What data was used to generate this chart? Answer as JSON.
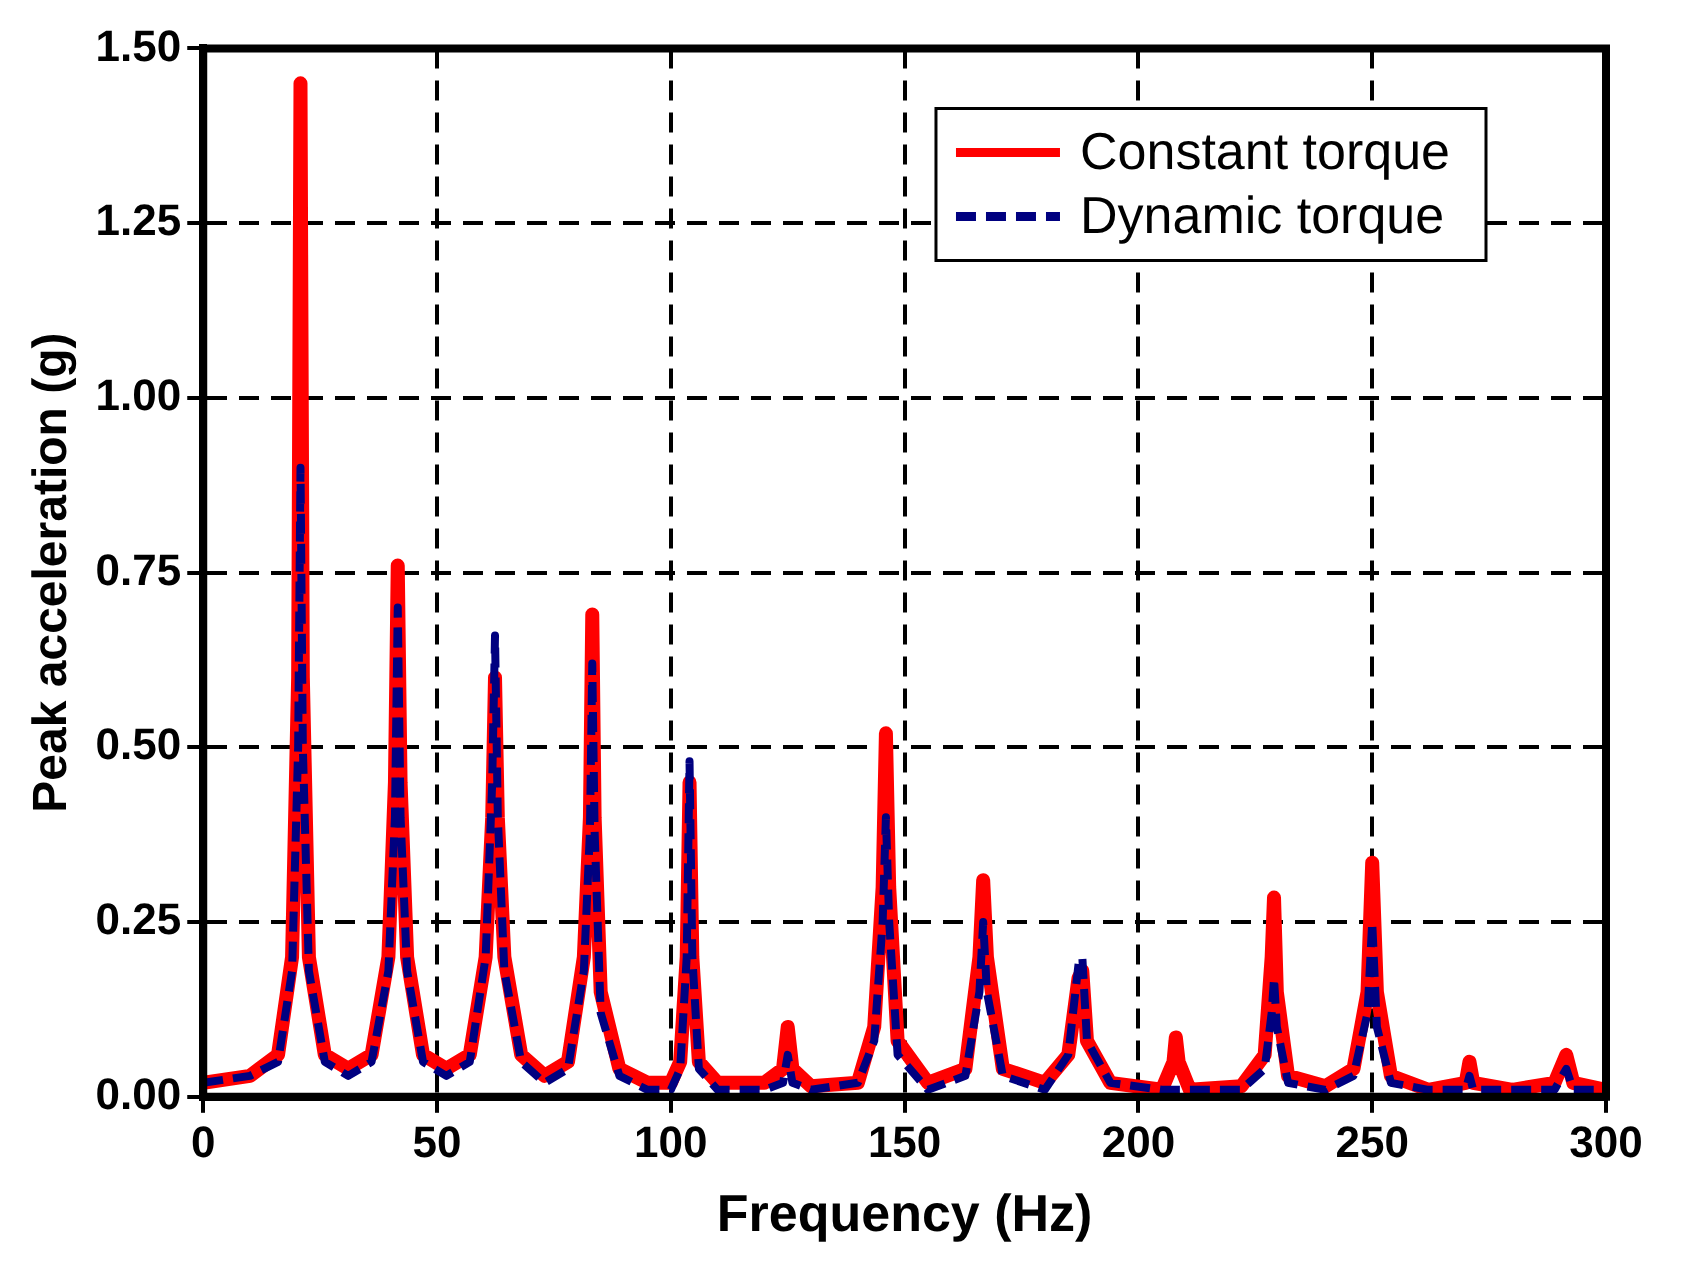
{
  "chart_data": {
    "type": "line",
    "xlabel": "Frequency (Hz)",
    "ylabel": "Peak acceleration (g)",
    "xlim": [
      0,
      300
    ],
    "xticks": [
      0,
      50,
      100,
      150,
      200,
      250,
      300
    ],
    "ylim": [
      0,
      1.5
    ],
    "yticks": [
      {
        "value": 0,
        "label": "0.00"
      },
      {
        "value": 0.25,
        "label": "0.25"
      },
      {
        "value": 0.5,
        "label": "0.50"
      },
      {
        "value": 0.75,
        "label": "0.75"
      },
      {
        "value": 1,
        "label": "1.00"
      },
      {
        "value": 1.25,
        "label": "1.25"
      },
      {
        "value": 1.5,
        "label": "1.50"
      }
    ],
    "grid": true,
    "legend": "top right",
    "marker": "none",
    "series": [
      {
        "name": "Constant torque",
        "color": "#ff0000",
        "line_style": "solid",
        "x": [
          0,
          10,
          16,
          19,
          20.3,
          20.8,
          21.3,
          22.6,
          26,
          31,
          36,
          39.6,
          41,
          41.6,
          42.2,
          43.6,
          47,
          52,
          57,
          60.4,
          61.8,
          62.4,
          63,
          64.4,
          68,
          73,
          78,
          81.4,
          82.7,
          83.2,
          83.7,
          85,
          89,
          95,
          100,
          102,
          103.4,
          104,
          104.6,
          106,
          110,
          120,
          124,
          125,
          126,
          130,
          140,
          143.5,
          145.3,
          146,
          146.7,
          148.5,
          155,
          163,
          166,
          166.8,
          167.6,
          171,
          180,
          185,
          187.2,
          188,
          189,
          194,
          205,
          207.5,
          208,
          208.6,
          211,
          222,
          227,
          228.5,
          229,
          229.6,
          232,
          240,
          246,
          249,
          250,
          251,
          254,
          262,
          270,
          270.8,
          271.6,
          280,
          289,
          291.5,
          293,
          300
        ],
        "values": [
          0.02,
          0.03,
          0.06,
          0.2,
          0.6,
          1.45,
          0.6,
          0.2,
          0.06,
          0.04,
          0.06,
          0.2,
          0.45,
          0.76,
          0.45,
          0.2,
          0.06,
          0.04,
          0.06,
          0.2,
          0.4,
          0.6,
          0.4,
          0.2,
          0.06,
          0.03,
          0.05,
          0.2,
          0.4,
          0.69,
          0.4,
          0.15,
          0.04,
          0.02,
          0.02,
          0.05,
          0.2,
          0.45,
          0.2,
          0.05,
          0.02,
          0.02,
          0.04,
          0.1,
          0.04,
          0.015,
          0.02,
          0.1,
          0.3,
          0.52,
          0.3,
          0.08,
          0.02,
          0.04,
          0.2,
          0.31,
          0.2,
          0.04,
          0.02,
          0.06,
          0.17,
          0.18,
          0.08,
          0.02,
          0.01,
          0.05,
          0.085,
          0.05,
          0.01,
          0.015,
          0.06,
          0.2,
          0.285,
          0.15,
          0.03,
          0.015,
          0.04,
          0.15,
          0.335,
          0.15,
          0.03,
          0.01,
          0.02,
          0.05,
          0.02,
          0.01,
          0.02,
          0.06,
          0.02,
          0.01
        ]
      },
      {
        "name": "Dynamic torque",
        "color": "#000080",
        "line_style": "dashed",
        "x": [
          0,
          10,
          16,
          19,
          20.3,
          20.8,
          21.3,
          22.6,
          26,
          31,
          36,
          39.6,
          41,
          41.6,
          42.2,
          43.6,
          47,
          52,
          57,
          60.4,
          61.8,
          62.4,
          63,
          64.4,
          68,
          73,
          78,
          81.4,
          82.7,
          83.2,
          83.7,
          85,
          89,
          95,
          100,
          102,
          103.4,
          104,
          104.6,
          106,
          110,
          120,
          124,
          125,
          126,
          130,
          140,
          143.5,
          145.3,
          146,
          146.7,
          148.5,
          155,
          163,
          166,
          166.8,
          167.6,
          171,
          180,
          185,
          187.2,
          188,
          189,
          194,
          205,
          208,
          211,
          222,
          227,
          228.5,
          229,
          229.6,
          232,
          240,
          246,
          249,
          250,
          251,
          254,
          262,
          270,
          270.8,
          271.6,
          280,
          289,
          291.5,
          293,
          300
        ],
        "values": [
          0.02,
          0.03,
          0.05,
          0.18,
          0.5,
          0.9,
          0.5,
          0.18,
          0.05,
          0.03,
          0.05,
          0.18,
          0.4,
          0.7,
          0.4,
          0.18,
          0.05,
          0.03,
          0.05,
          0.2,
          0.45,
          0.66,
          0.4,
          0.18,
          0.05,
          0.02,
          0.04,
          0.18,
          0.38,
          0.62,
          0.38,
          0.12,
          0.03,
          0.01,
          0.01,
          0.04,
          0.2,
          0.48,
          0.2,
          0.04,
          0.01,
          0.01,
          0.02,
          0.06,
          0.02,
          0.01,
          0.02,
          0.08,
          0.25,
          0.4,
          0.25,
          0.06,
          0.01,
          0.03,
          0.15,
          0.25,
          0.15,
          0.03,
          0.01,
          0.06,
          0.19,
          0.2,
          0.08,
          0.02,
          0.01,
          0.01,
          0.01,
          0.01,
          0.04,
          0.12,
          0.17,
          0.1,
          0.02,
          0.01,
          0.03,
          0.12,
          0.25,
          0.1,
          0.02,
          0.01,
          0.01,
          0.03,
          0.01,
          0.01,
          0.01,
          0.04,
          0.01,
          0.01
        ]
      }
    ]
  }
}
